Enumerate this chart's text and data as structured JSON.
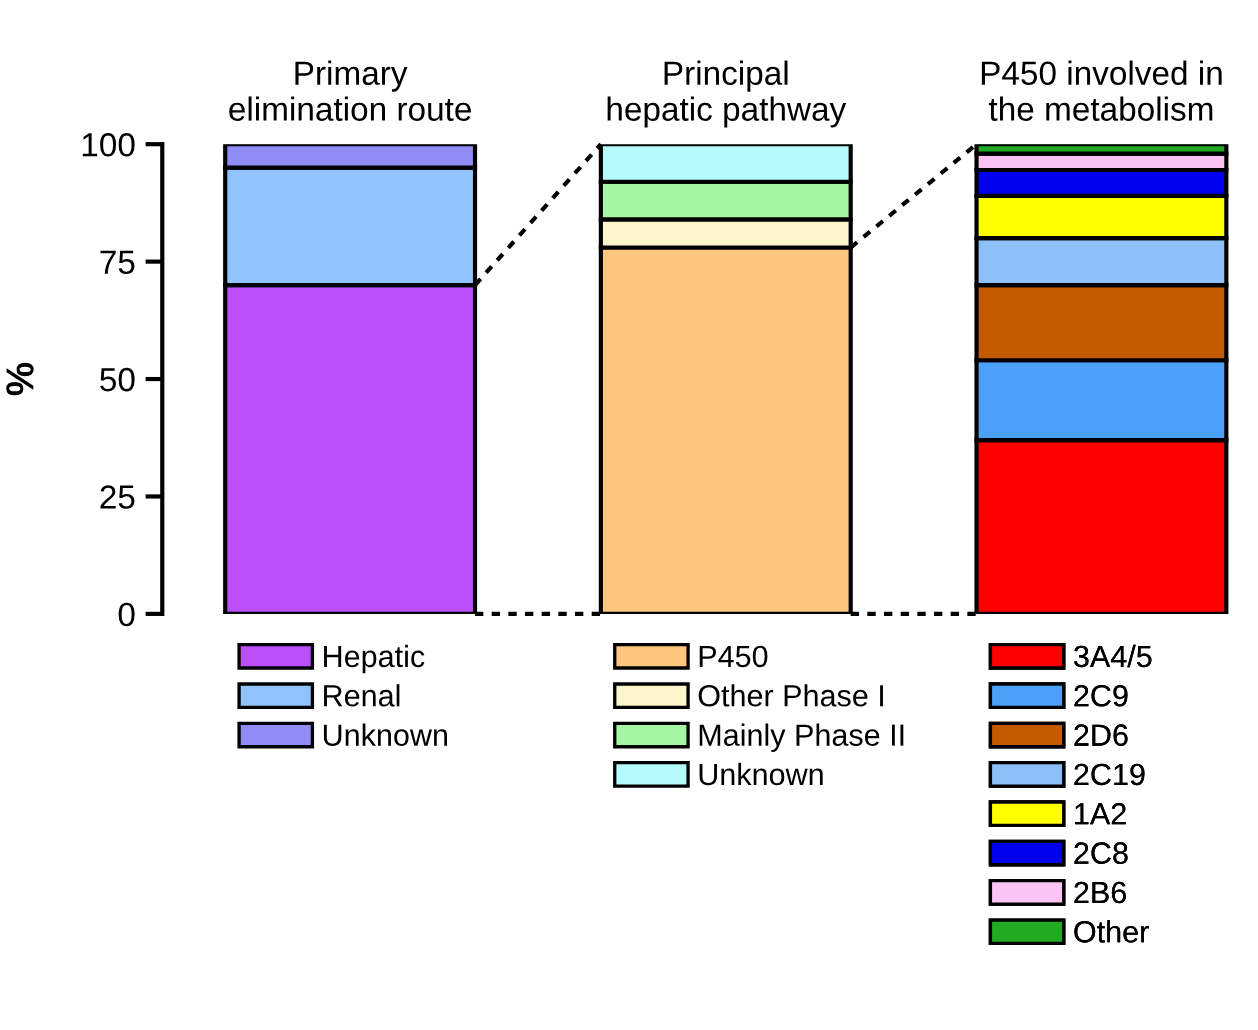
{
  "chart_data": {
    "type": "bar",
    "stacked": true,
    "categories": [
      "Primary\nelimination route",
      "Principal\nhepatic pathway",
      "P450 involved in\nthe metabolism"
    ],
    "ylabel": "%",
    "ylim": [
      0,
      100
    ],
    "yticks": [
      0,
      25,
      50,
      75,
      100
    ],
    "grid": false,
    "legend": "bottom",
    "series": [
      {
        "name": "Hepatic",
        "color": "#bb4ffa",
        "values": [
          70,
          null,
          null
        ]
      },
      {
        "name": "Renal",
        "color": "#90c3fb",
        "values": [
          25,
          null,
          null
        ]
      },
      {
        "name": "Unknown",
        "color": "#8f8cf5",
        "values": [
          5,
          null,
          null
        ]
      },
      {
        "name": "P450",
        "color": "#fcc67f",
        "values": [
          null,
          78,
          null
        ]
      },
      {
        "name": "Other Phase I",
        "color": "#fdf5cc",
        "values": [
          null,
          6,
          null
        ]
      },
      {
        "name": "Mainly Phase II",
        "color": "#a5f5a5",
        "values": [
          null,
          8,
          null
        ]
      },
      {
        "name": "Unknown",
        "color": "#b5fbfb",
        "values": [
          null,
          8,
          null
        ]
      },
      {
        "name": "3A4/5",
        "color": "#fe0000",
        "values": [
          null,
          null,
          37
        ]
      },
      {
        "name": "2C9",
        "color": "#4ba0f8",
        "values": [
          null,
          null,
          17
        ]
      },
      {
        "name": "2D6",
        "color": "#c45a00",
        "values": [
          null,
          null,
          16
        ]
      },
      {
        "name": "2C19",
        "color": "#8dbff8",
        "values": [
          null,
          null,
          10
        ]
      },
      {
        "name": "1A2",
        "color": "#ffff00",
        "values": [
          null,
          null,
          9
        ]
      },
      {
        "name": "2C8",
        "color": "#0000ee",
        "values": [
          null,
          null,
          5.5
        ]
      },
      {
        "name": "2B6",
        "color": "#fcc4f4",
        "values": [
          null,
          null,
          3.5
        ]
      },
      {
        "name": "Other",
        "color": "#22aa22",
        "values": [
          null,
          null,
          2
        ]
      }
    ]
  }
}
